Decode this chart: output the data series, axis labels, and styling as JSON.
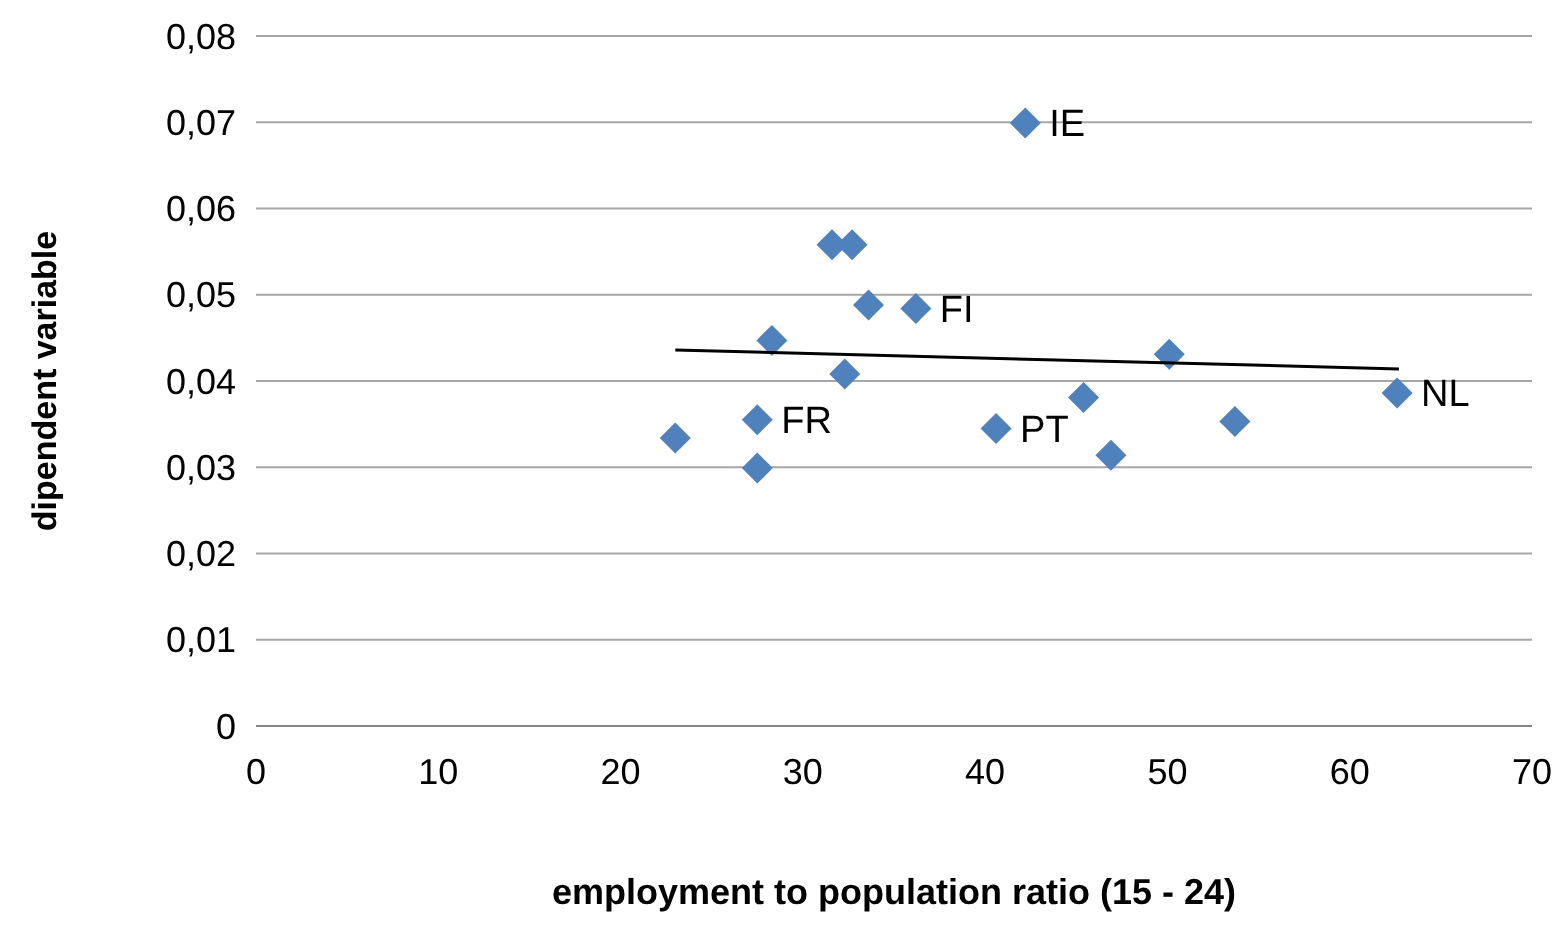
{
  "chart_data": {
    "type": "scatter",
    "xlabel": "employment to population ratio (15 - 24)",
    "ylabel": "dipendent variable",
    "xlim": [
      0,
      70
    ],
    "xticks": [
      0,
      10,
      20,
      30,
      40,
      50,
      60,
      70
    ],
    "ylim": [
      0,
      0.08
    ],
    "yticks": [
      {
        "value": 0,
        "label": "0"
      },
      {
        "value": 0.01,
        "label": "0,01"
      },
      {
        "value": 0.02,
        "label": "0,02"
      },
      {
        "value": 0.03,
        "label": "0,03"
      },
      {
        "value": 0.04,
        "label": "0,04"
      },
      {
        "value": 0.05,
        "label": "0,05"
      },
      {
        "value": 0.06,
        "label": "0,06"
      },
      {
        "value": 0.07,
        "label": "0,07"
      },
      {
        "value": 0.08,
        "label": "0,08"
      }
    ],
    "grid": "y",
    "marker": "diamond",
    "series": [
      {
        "color": "#4f81bd",
        "x": [
          23.0,
          27.5,
          27.5,
          28.3,
          31.6,
          32.7,
          33.6,
          32.3,
          36.2,
          42.2,
          40.6,
          45.4,
          46.9,
          50.1,
          53.7,
          62.6
        ],
        "values": [
          0.0334,
          0.0355,
          0.0299,
          0.0447,
          0.0558,
          0.0558,
          0.0488,
          0.0408,
          0.0484,
          0.0699,
          0.0345,
          0.0381,
          0.0314,
          0.0431,
          0.0353,
          0.0386
        ]
      },
      {
        "type": "line",
        "color": "#000000",
        "marker": "none",
        "x": [
          23.0,
          62.7
        ],
        "values": [
          0.0436,
          0.0414
        ]
      }
    ],
    "annotations": [
      {
        "text": "IE",
        "x": 42.2,
        "y": 0.0699
      },
      {
        "text": "FI",
        "x": 36.2,
        "y": 0.0484
      },
      {
        "text": "FR",
        "x": 27.5,
        "y": 0.0355
      },
      {
        "text": "PT",
        "x": 40.6,
        "y": 0.0345
      },
      {
        "text": "NL",
        "x": 62.6,
        "y": 0.0386
      }
    ]
  }
}
